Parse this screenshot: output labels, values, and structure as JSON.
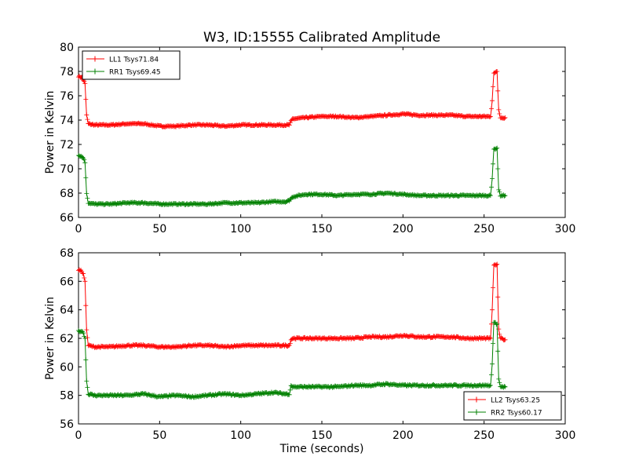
{
  "chart_data": {
    "type": "line",
    "title": "W3, ID:15555 Calibrated Amplitude",
    "xlabel": "Time (seconds)",
    "marker": "+",
    "panels": [
      {
        "ylabel": "Power in Kelvin",
        "xlim": [
          0,
          300
        ],
        "ylim": [
          66,
          80
        ],
        "xticks": [
          "0",
          "50",
          "100",
          "150",
          "200",
          "250",
          "300"
        ],
        "yticks": [
          "66",
          "68",
          "70",
          "72",
          "74",
          "76",
          "78",
          "80"
        ],
        "legend_position": "top-left",
        "series": [
          {
            "name": "LL1 Tsys71.84",
            "color": "#ff0000",
            "points": [
              [
                0,
                77.6
              ],
              [
                2,
                77.5
              ],
              [
                3,
                77.3
              ],
              [
                4,
                77.0
              ],
              [
                5,
                74.4
              ],
              [
                6,
                73.7
              ],
              [
                10,
                73.6
              ],
              [
                20,
                73.6
              ],
              [
                30,
                73.7
              ],
              [
                40,
                73.7
              ],
              [
                50,
                73.5
              ],
              [
                60,
                73.5
              ],
              [
                70,
                73.6
              ],
              [
                80,
                73.6
              ],
              [
                90,
                73.5
              ],
              [
                100,
                73.6
              ],
              [
                110,
                73.6
              ],
              [
                120,
                73.6
              ],
              [
                130,
                73.6
              ],
              [
                131,
                73.9
              ],
              [
                132,
                74.1
              ],
              [
                140,
                74.2
              ],
              [
                150,
                74.3
              ],
              [
                160,
                74.3
              ],
              [
                170,
                74.2
              ],
              [
                180,
                74.3
              ],
              [
                190,
                74.4
              ],
              [
                200,
                74.5
              ],
              [
                210,
                74.4
              ],
              [
                220,
                74.4
              ],
              [
                230,
                74.4
              ],
              [
                240,
                74.3
              ],
              [
                250,
                74.3
              ],
              [
                254,
                74.3
              ],
              [
                255,
                75.6
              ],
              [
                256,
                77.9
              ],
              [
                258,
                78.0
              ],
              [
                259,
                74.8
              ],
              [
                260,
                74.2
              ],
              [
                263,
                74.2
              ]
            ]
          },
          {
            "name": "RR1 Tsys69.45",
            "color": "#008000",
            "points": [
              [
                0,
                71.1
              ],
              [
                2,
                71.0
              ],
              [
                3,
                70.9
              ],
              [
                4,
                70.5
              ],
              [
                5,
                68.0
              ],
              [
                6,
                67.2
              ],
              [
                10,
                67.1
              ],
              [
                20,
                67.1
              ],
              [
                30,
                67.2
              ],
              [
                40,
                67.2
              ],
              [
                50,
                67.1
              ],
              [
                60,
                67.1
              ],
              [
                70,
                67.1
              ],
              [
                80,
                67.1
              ],
              [
                90,
                67.2
              ],
              [
                100,
                67.2
              ],
              [
                110,
                67.2
              ],
              [
                120,
                67.3
              ],
              [
                128,
                67.3
              ],
              [
                130,
                67.4
              ],
              [
                132,
                67.7
              ],
              [
                140,
                67.9
              ],
              [
                150,
                67.9
              ],
              [
                160,
                67.8
              ],
              [
                170,
                67.9
              ],
              [
                180,
                67.9
              ],
              [
                190,
                68.0
              ],
              [
                200,
                67.9
              ],
              [
                210,
                67.8
              ],
              [
                220,
                67.8
              ],
              [
                230,
                67.8
              ],
              [
                240,
                67.8
              ],
              [
                250,
                67.8
              ],
              [
                254,
                67.8
              ],
              [
                255,
                69.2
              ],
              [
                256,
                71.6
              ],
              [
                258,
                71.7
              ],
              [
                259,
                68.3
              ],
              [
                260,
                67.8
              ],
              [
                263,
                67.8
              ]
            ]
          }
        ]
      },
      {
        "ylabel": "Power in Kelvin",
        "xlim": [
          0,
          300
        ],
        "ylim": [
          56,
          68
        ],
        "xticks": [
          "0",
          "50",
          "100",
          "150",
          "200",
          "250",
          "300"
        ],
        "yticks": [
          "56",
          "58",
          "60",
          "62",
          "64",
          "66",
          "68"
        ],
        "legend_position": "bottom-right",
        "series": [
          {
            "name": "LL2 Tsys63.25",
            "color": "#ff0000",
            "points": [
              [
                0,
                66.8
              ],
              [
                2,
                66.7
              ],
              [
                3,
                66.5
              ],
              [
                4,
                66.0
              ],
              [
                5,
                62.6
              ],
              [
                6,
                61.5
              ],
              [
                10,
                61.4
              ],
              [
                20,
                61.4
              ],
              [
                30,
                61.5
              ],
              [
                40,
                61.5
              ],
              [
                50,
                61.4
              ],
              [
                60,
                61.4
              ],
              [
                70,
                61.5
              ],
              [
                80,
                61.5
              ],
              [
                90,
                61.4
              ],
              [
                100,
                61.5
              ],
              [
                110,
                61.5
              ],
              [
                120,
                61.5
              ],
              [
                130,
                61.5
              ],
              [
                131,
                61.9
              ],
              [
                132,
                62.0
              ],
              [
                140,
                62.0
              ],
              [
                150,
                62.0
              ],
              [
                160,
                62.0
              ],
              [
                170,
                62.0
              ],
              [
                180,
                62.1
              ],
              [
                190,
                62.1
              ],
              [
                200,
                62.2
              ],
              [
                210,
                62.1
              ],
              [
                220,
                62.1
              ],
              [
                230,
                62.1
              ],
              [
                240,
                62.0
              ],
              [
                250,
                62.0
              ],
              [
                254,
                62.0
              ],
              [
                255,
                64.0
              ],
              [
                256,
                67.1
              ],
              [
                258,
                67.2
              ],
              [
                259,
                62.6
              ],
              [
                260,
                62.0
              ],
              [
                263,
                61.9
              ]
            ]
          },
          {
            "name": "RR2 Tsys60.17",
            "color": "#008000",
            "points": [
              [
                0,
                62.5
              ],
              [
                2,
                62.5
              ],
              [
                3,
                62.4
              ],
              [
                4,
                62.0
              ],
              [
                5,
                59.0
              ],
              [
                6,
                58.1
              ],
              [
                10,
                58.0
              ],
              [
                20,
                58.0
              ],
              [
                30,
                58.0
              ],
              [
                40,
                58.1
              ],
              [
                50,
                57.9
              ],
              [
                60,
                58.0
              ],
              [
                70,
                57.9
              ],
              [
                80,
                58.0
              ],
              [
                90,
                58.1
              ],
              [
                100,
                58.0
              ],
              [
                110,
                58.1
              ],
              [
                120,
                58.2
              ],
              [
                128,
                58.1
              ],
              [
                130,
                58.1
              ],
              [
                131,
                58.7
              ],
              [
                132,
                58.6
              ],
              [
                140,
                58.6
              ],
              [
                150,
                58.6
              ],
              [
                160,
                58.6
              ],
              [
                170,
                58.7
              ],
              [
                180,
                58.7
              ],
              [
                190,
                58.8
              ],
              [
                200,
                58.7
              ],
              [
                210,
                58.7
              ],
              [
                220,
                58.7
              ],
              [
                230,
                58.7
              ],
              [
                240,
                58.7
              ],
              [
                250,
                58.7
              ],
              [
                254,
                58.7
              ],
              [
                255,
                60.2
              ],
              [
                256,
                63.1
              ],
              [
                258,
                63.0
              ],
              [
                259,
                59.2
              ],
              [
                260,
                58.6
              ],
              [
                263,
                58.6
              ]
            ]
          }
        ]
      }
    ]
  }
}
